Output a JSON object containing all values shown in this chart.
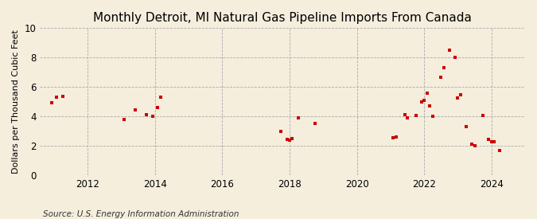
{
  "title": "Monthly Detroit, MI Natural Gas Pipeline Imports From Canada",
  "ylabel": "Dollars per Thousand Cubic Feet",
  "source": "Source: U.S. Energy Information Administration",
  "background_color": "#f5eedd",
  "marker_color": "#cc0000",
  "marker_size": 12,
  "marker_style": "s",
  "xlim": [
    2010.58,
    2025.0
  ],
  "ylim": [
    0,
    10
  ],
  "yticks": [
    0,
    2,
    4,
    6,
    8,
    10
  ],
  "xticks": [
    2012,
    2014,
    2016,
    2018,
    2020,
    2022,
    2024
  ],
  "data_x": [
    2010.92,
    2011.08,
    2011.25,
    2013.08,
    2013.42,
    2013.75,
    2013.92,
    2014.08,
    2014.17,
    2017.75,
    2017.92,
    2018.0,
    2018.08,
    2018.25,
    2018.75,
    2021.08,
    2021.17,
    2021.42,
    2021.5,
    2021.75,
    2021.92,
    2022.0,
    2022.08,
    2022.17,
    2022.25,
    2022.5,
    2022.58,
    2022.75,
    2022.92,
    2023.0,
    2023.08,
    2023.25,
    2023.42,
    2023.5,
    2023.75,
    2023.92,
    2024.0,
    2024.08,
    2024.25
  ],
  "data_y": [
    4.95,
    5.3,
    5.35,
    3.8,
    4.45,
    4.1,
    4.0,
    4.6,
    5.3,
    3.0,
    2.45,
    2.4,
    2.5,
    3.9,
    3.5,
    2.55,
    2.6,
    4.1,
    3.9,
    4.05,
    5.0,
    5.1,
    5.6,
    4.7,
    4.0,
    6.65,
    7.3,
    8.5,
    8.0,
    5.25,
    5.45,
    3.3,
    2.1,
    2.0,
    4.05,
    2.45,
    2.3,
    2.3,
    1.7
  ],
  "title_fontsize": 11,
  "label_fontsize": 8,
  "tick_fontsize": 8.5,
  "source_fontsize": 7.5
}
